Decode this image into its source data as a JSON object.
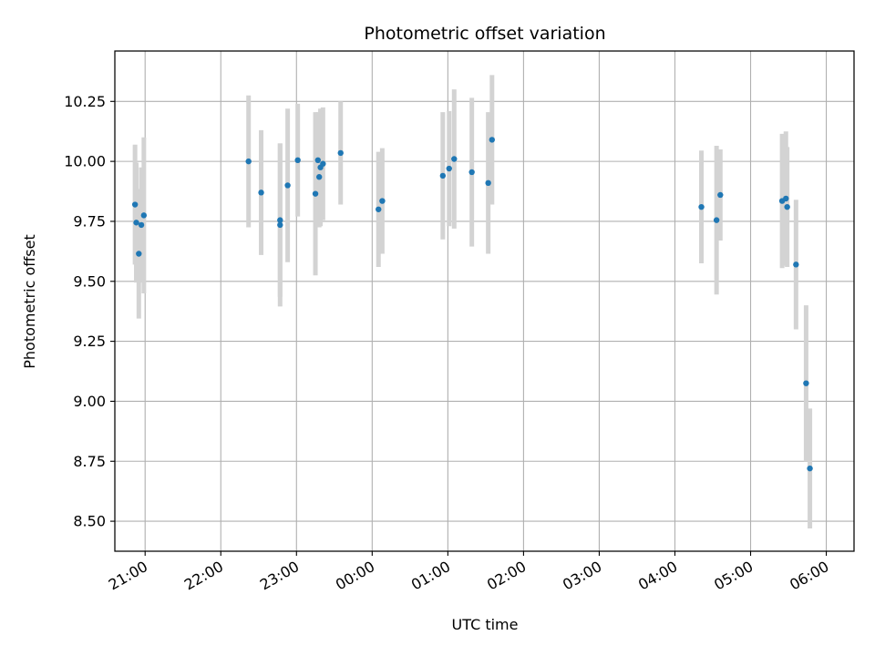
{
  "chart_data": {
    "type": "scatter",
    "title": "Photometric offset variation",
    "xlabel": "UTC time",
    "ylabel": "Photometric offset",
    "grid": true,
    "x_unit": "UTC time (HH:MM)",
    "xlim": [
      "20:36",
      "06:22"
    ],
    "ylim": [
      8.375,
      10.46
    ],
    "xticks": [
      "21:00",
      "22:00",
      "23:00",
      "00:00",
      "01:00",
      "02:00",
      "03:00",
      "04:00",
      "05:00",
      "06:00"
    ],
    "yticks": [
      "8.50",
      "8.75",
      "9.00",
      "9.25",
      "9.50",
      "9.75",
      "10.00",
      "10.25"
    ],
    "colors": {
      "point": "#1f77b4",
      "errorbar": "#d3d3d3",
      "grid": "#b0b0b0"
    },
    "points": [
      {
        "x": "20:52",
        "y": 9.82,
        "err": 0.25
      },
      {
        "x": "20:53",
        "y": 9.745,
        "err": 0.25
      },
      {
        "x": "20:55",
        "y": 9.615,
        "err": 0.27
      },
      {
        "x": "20:57",
        "y": 9.735,
        "err": 0.24
      },
      {
        "x": "20:59",
        "y": 9.775,
        "err": 0.325
      },
      {
        "x": "22:22",
        "y": 10.0,
        "err": 0.275
      },
      {
        "x": "22:32",
        "y": 9.87,
        "err": 0.26
      },
      {
        "x": "22:47",
        "y": 9.755,
        "err": 0.32
      },
      {
        "x": "22:47",
        "y": 9.735,
        "err": 0.34
      },
      {
        "x": "22:53",
        "y": 9.9,
        "err": 0.32
      },
      {
        "x": "23:01",
        "y": 10.005,
        "err": 0.235
      },
      {
        "x": "23:15",
        "y": 9.865,
        "err": 0.34
      },
      {
        "x": "23:17",
        "y": 10.005,
        "err": 0.2
      },
      {
        "x": "23:18",
        "y": 9.935,
        "err": 0.21
      },
      {
        "x": "23:19",
        "y": 9.975,
        "err": 0.245
      },
      {
        "x": "23:21",
        "y": 9.99,
        "err": 0.235
      },
      {
        "x": "23:35",
        "y": 10.035,
        "err": 0.215
      },
      {
        "x": "00:05",
        "y": 9.8,
        "err": 0.24
      },
      {
        "x": "00:08",
        "y": 9.835,
        "err": 0.22
      },
      {
        "x": "00:56",
        "y": 9.94,
        "err": 0.265
      },
      {
        "x": "01:01",
        "y": 9.97,
        "err": 0.24
      },
      {
        "x": "01:05",
        "y": 10.01,
        "err": 0.29
      },
      {
        "x": "01:19",
        "y": 9.955,
        "err": 0.31
      },
      {
        "x": "01:32",
        "y": 9.91,
        "err": 0.295
      },
      {
        "x": "01:35",
        "y": 10.09,
        "err": 0.27
      },
      {
        "x": "04:21",
        "y": 9.81,
        "err": 0.235
      },
      {
        "x": "04:33",
        "y": 9.755,
        "err": 0.31
      },
      {
        "x": "04:36",
        "y": 9.86,
        "err": 0.19
      },
      {
        "x": "05:25",
        "y": 9.835,
        "err": 0.28
      },
      {
        "x": "05:28",
        "y": 9.845,
        "err": 0.28
      },
      {
        "x": "05:29",
        "y": 9.81,
        "err": 0.25
      },
      {
        "x": "05:36",
        "y": 9.57,
        "err": 0.27
      },
      {
        "x": "05:44",
        "y": 9.075,
        "err": 0.325
      },
      {
        "x": "05:47",
        "y": 8.72,
        "err": 0.25
      }
    ]
  }
}
